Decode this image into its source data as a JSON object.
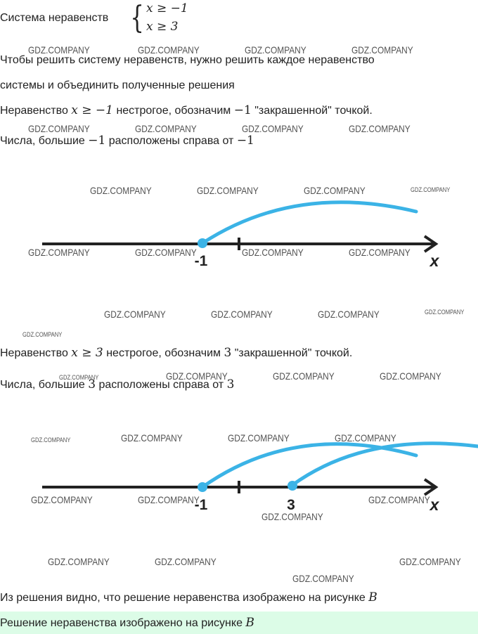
{
  "watermark": "GDZ.COMPANY",
  "system": {
    "label": "Система неравенств",
    "line1": "x ≥ −1",
    "line2": "x ≥ 3"
  },
  "intro": {
    "line1": "Чтобы решить систему неравенств, нужно решить каждое неравенство",
    "line2": "системы и объединить полученные решения"
  },
  "step1": {
    "pre": "Неравенство ",
    "ineq": "x ≥ −1",
    "mid": " нестрогое, обозначим ",
    "num": "−1",
    "post": " \"закрашенной\" точкой.",
    "n_pre": "Числа, большие ",
    "n_num": "−1",
    "n_mid": " расположены справа от ",
    "n_num2": "−1"
  },
  "figure1": {
    "point_label": "-1",
    "axis_label": "x"
  },
  "step2": {
    "pre": "Неравенство ",
    "ineq": "x ≥ 3",
    "mid": " нестрогое, обозначим ",
    "num": "3",
    "post": " \"закрашенной\" точкой.",
    "n_pre": "Числа, большие ",
    "n_num": "3",
    "n_mid": " расположены справа от ",
    "n_num2": "3"
  },
  "figure2": {
    "point1_label": "-1",
    "point2_label": "3",
    "axis_label": "x"
  },
  "conclusion": {
    "text": "Из решения видно, что решение неравенства изображено на рисунке ",
    "var": "B"
  },
  "answer": {
    "text": "Решение неравенства изображено на рисунке ",
    "var": "B"
  },
  "colors": {
    "arc": "#3bb3e6",
    "axis": "#222222",
    "answer_bg": "#dcfce7"
  }
}
